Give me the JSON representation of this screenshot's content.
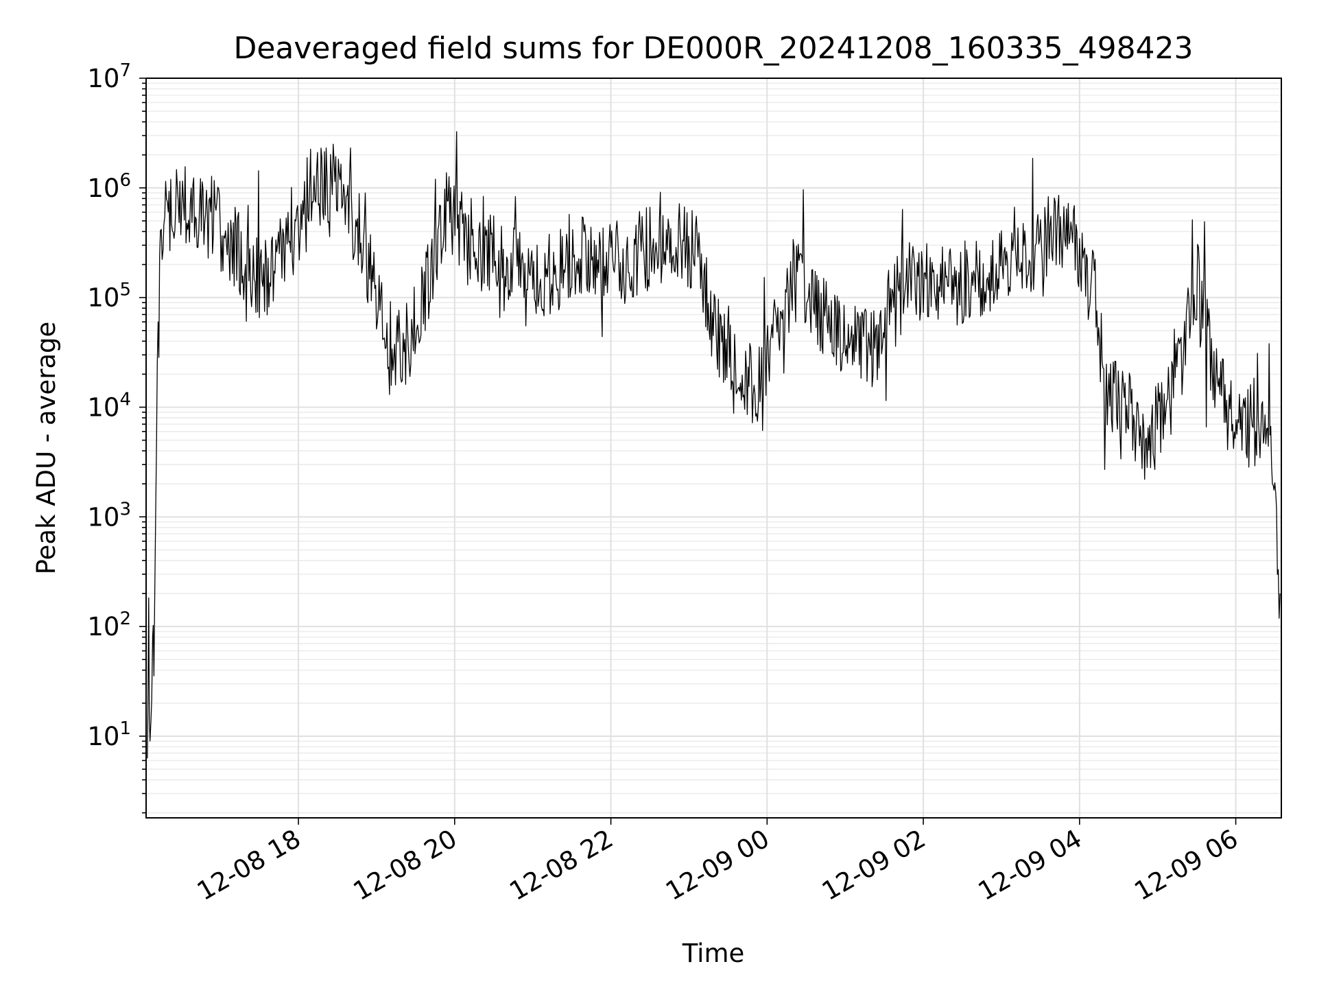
{
  "chart_data": {
    "type": "line",
    "title": "Deaveraged field sums for DE000R_20241208_160335_498423",
    "xlabel": "Time",
    "ylabel": "Peak ADU - average",
    "yscale": "log",
    "xlim": [
      "2024-12-08 16:03",
      "2024-12-09 06:35"
    ],
    "ylim": [
      1.8,
      10000000
    ],
    "grid": "both",
    "x_ticks": [
      {
        "value": "2024-12-08 18:00",
        "label": "12-08 18"
      },
      {
        "value": "2024-12-08 20:00",
        "label": "12-08 20"
      },
      {
        "value": "2024-12-08 22:00",
        "label": "12-08 22"
      },
      {
        "value": "2024-12-09 00:00",
        "label": "12-09 00"
      },
      {
        "value": "2024-12-09 02:00",
        "label": "12-09 02"
      },
      {
        "value": "2024-12-09 04:00",
        "label": "12-09 04"
      },
      {
        "value": "2024-12-09 06:00",
        "label": "12-09 06"
      }
    ],
    "y_ticks": [
      {
        "value": 10,
        "base": "10",
        "exp": "1"
      },
      {
        "value": 100,
        "base": "10",
        "exp": "2"
      },
      {
        "value": 1000,
        "base": "10",
        "exp": "3"
      },
      {
        "value": 10000,
        "base": "10",
        "exp": "4"
      },
      {
        "value": 100000,
        "base": "10",
        "exp": "5"
      },
      {
        "value": 1000000,
        "base": "10",
        "exp": "6"
      },
      {
        "value": 10000000,
        "base": "10",
        "exp": "7"
      }
    ],
    "series": [
      {
        "color": "#000000",
        "x": [
          "2024-12-08 16:04",
          "2024-12-08 16:05",
          "2024-12-08 16:06",
          "2024-12-08 16:08",
          "2024-12-08 16:09",
          "2024-12-08 16:11",
          "2024-12-08 16:14",
          "2024-12-08 16:20",
          "2024-12-08 16:27",
          "2024-12-08 16:35",
          "2024-12-08 16:50",
          "2024-12-08 17:10",
          "2024-12-08 17:30",
          "2024-12-08 17:50",
          "2024-12-08 18:10",
          "2024-12-08 18:30",
          "2024-12-08 18:40",
          "2024-12-08 18:50",
          "2024-12-08 19:00",
          "2024-12-08 19:10",
          "2024-12-08 19:25",
          "2024-12-08 19:40",
          "2024-12-08 19:55",
          "2024-12-08 20:10",
          "2024-12-08 20:30",
          "2024-12-08 20:50",
          "2024-12-08 21:10",
          "2024-12-08 21:30",
          "2024-12-08 21:50",
          "2024-12-08 22:10",
          "2024-12-08 22:30",
          "2024-12-08 22:50",
          "2024-12-08 23:05",
          "2024-12-08 23:20",
          "2024-12-08 23:35",
          "2024-12-08 23:50",
          "2024-12-09 00:05",
          "2024-12-09 00:20",
          "2024-12-09 00:35",
          "2024-12-09 00:50",
          "2024-12-09 01:05",
          "2024-12-09 01:20",
          "2024-12-09 01:40",
          "2024-12-09 02:00",
          "2024-12-09 02:20",
          "2024-12-09 02:40",
          "2024-12-09 03:00",
          "2024-12-09 03:20",
          "2024-12-09 03:40",
          "2024-12-09 04:00",
          "2024-12-09 04:10",
          "2024-12-09 04:20",
          "2024-12-09 04:35",
          "2024-12-09 04:50",
          "2024-12-09 05:05",
          "2024-12-09 05:20",
          "2024-12-09 05:30",
          "2024-12-09 05:40",
          "2024-12-09 05:55",
          "2024-12-09 06:10",
          "2024-12-09 06:18",
          "2024-12-09 06:25",
          "2024-12-09 06:30",
          "2024-12-09 06:34"
        ],
        "y": [
          4,
          120,
          5,
          100,
          30,
          10000,
          200000,
          500000,
          900000,
          700000,
          600000,
          300000,
          150000,
          250000,
          1000000,
          1200000,
          600000,
          300000,
          100000,
          30000,
          40000,
          150000,
          700000,
          300000,
          250000,
          200000,
          150000,
          220000,
          250000,
          200000,
          300000,
          350000,
          250000,
          50000,
          30000,
          15000,
          40000,
          150000,
          100000,
          50000,
          40000,
          35000,
          120000,
          150000,
          120000,
          150000,
          180000,
          250000,
          400000,
          300000,
          150000,
          15000,
          10000,
          5000,
          8000,
          30000,
          150000,
          30000,
          8000,
          6000,
          8000,
          8000,
          1000,
          200
        ]
      }
    ]
  }
}
